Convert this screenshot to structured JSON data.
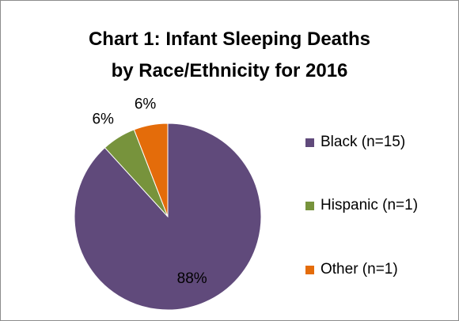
{
  "chart_data": {
    "type": "pie",
    "title_lines": [
      "Chart 1: Infant Sleeping Deaths",
      "by Race/Ethnicity for 2016"
    ],
    "categories": [
      "Black (n=15)",
      "Hispanic (n=1)",
      "Other (n=1)"
    ],
    "values": [
      15,
      1,
      1
    ],
    "percent_labels": [
      "88%",
      "6%",
      "6%"
    ],
    "colors": [
      "#604a7b",
      "#77933c",
      "#e46c0a"
    ],
    "start_angle": "12 o'clock",
    "direction": "clockwise",
    "legend_position": "right"
  }
}
